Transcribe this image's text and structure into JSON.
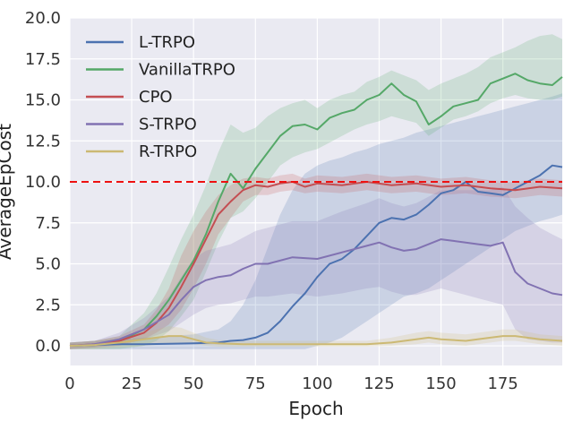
{
  "chart_data": {
    "type": "line",
    "xlabel": "Epoch",
    "ylabel": "AverageEpCost",
    "xlim": [
      0,
      199
    ],
    "ylim": [
      -1.2,
      20.0
    ],
    "xticks": [
      0,
      25,
      50,
      75,
      100,
      125,
      150,
      175
    ],
    "yticks": [
      0.0,
      2.5,
      5.0,
      7.5,
      10.0,
      12.5,
      15.0,
      17.5,
      20.0
    ],
    "xtick_labels": [
      "0",
      "25",
      "50",
      "75",
      "100",
      "125",
      "150",
      "175"
    ],
    "ytick_labels": [
      "0.0",
      "2.5",
      "5.0",
      "7.5",
      "10.0",
      "12.5",
      "15.0",
      "17.5",
      "20.0"
    ],
    "grid": true,
    "legend_position": "top-left",
    "threshold": {
      "value": 10.0,
      "color": "#ee1111",
      "style": "dashed"
    },
    "series": [
      {
        "name": "L-TRPO",
        "color": "#4c72b0",
        "x": [
          0,
          10,
          20,
          30,
          40,
          50,
          60,
          65,
          70,
          75,
          80,
          85,
          90,
          95,
          100,
          105,
          110,
          115,
          120,
          125,
          130,
          135,
          140,
          145,
          150,
          155,
          160,
          165,
          170,
          175,
          180,
          185,
          190,
          195,
          199
        ],
        "mean": [
          0.0,
          0.05,
          0.1,
          0.1,
          0.12,
          0.15,
          0.2,
          0.3,
          0.35,
          0.5,
          0.8,
          1.5,
          2.4,
          3.2,
          4.2,
          5.0,
          5.3,
          5.9,
          6.7,
          7.5,
          7.8,
          7.7,
          8.0,
          8.6,
          9.3,
          9.5,
          10.0,
          9.4,
          9.3,
          9.2,
          9.6,
          10.0,
          10.4,
          11.0,
          10.9
        ],
        "lower": [
          -0.2,
          -0.2,
          -0.2,
          -0.2,
          -0.2,
          -0.2,
          -0.2,
          -0.2,
          -0.2,
          -0.2,
          -0.2,
          -0.2,
          -0.2,
          -0.2,
          0.0,
          0.2,
          0.5,
          1.0,
          1.5,
          2.0,
          2.5,
          3.0,
          3.2,
          3.5,
          4.0,
          4.5,
          5.0,
          5.5,
          6.0,
          6.5,
          7.0,
          7.3,
          7.6,
          7.8,
          8.0
        ],
        "upper": [
          0.2,
          0.3,
          0.4,
          0.5,
          0.6,
          0.7,
          1.0,
          1.5,
          2.5,
          4.0,
          6.0,
          8.0,
          9.5,
          10.5,
          11.0,
          11.3,
          11.5,
          11.8,
          12.0,
          12.3,
          12.5,
          12.7,
          13.0,
          13.2,
          13.4,
          13.6,
          13.8,
          14.0,
          14.2,
          14.4,
          14.6,
          14.8,
          15.0,
          15.2,
          15.4
        ]
      },
      {
        "name": "VanillaTRPO",
        "color": "#55a868",
        "x": [
          0,
          10,
          20,
          30,
          35,
          40,
          45,
          50,
          55,
          60,
          65,
          70,
          75,
          80,
          85,
          90,
          95,
          100,
          105,
          110,
          115,
          120,
          125,
          130,
          135,
          140,
          145,
          150,
          155,
          160,
          165,
          170,
          175,
          180,
          185,
          190,
          195,
          199
        ],
        "mean": [
          0.0,
          0.05,
          0.3,
          1.0,
          1.8,
          2.8,
          4.0,
          5.2,
          6.8,
          8.8,
          10.5,
          9.6,
          10.8,
          11.8,
          12.8,
          13.4,
          13.5,
          13.2,
          13.9,
          14.2,
          14.4,
          15.0,
          15.3,
          16.0,
          15.3,
          14.9,
          13.5,
          14.0,
          14.6,
          14.8,
          15.0,
          16.0,
          16.3,
          16.6,
          16.2,
          16.0,
          15.9,
          16.4
        ],
        "lower": [
          -0.2,
          -0.2,
          -0.2,
          0.0,
          0.3,
          0.9,
          1.8,
          2.8,
          4.5,
          6.3,
          7.8,
          8.2,
          9.0,
          10.0,
          11.0,
          11.5,
          11.8,
          12.0,
          12.4,
          12.8,
          13.2,
          13.5,
          13.7,
          14.0,
          13.8,
          13.6,
          12.8,
          13.3,
          13.8,
          14.0,
          14.3,
          14.8,
          15.1,
          15.3,
          15.1,
          15.0,
          15.0,
          15.2
        ],
        "upper": [
          0.2,
          0.3,
          0.6,
          2.0,
          3.2,
          4.8,
          6.5,
          8.0,
          9.8,
          11.8,
          13.5,
          13.0,
          13.3,
          14.0,
          14.5,
          14.8,
          15.0,
          14.5,
          15.0,
          15.3,
          15.5,
          16.1,
          16.4,
          16.8,
          16.5,
          16.2,
          15.6,
          16.0,
          16.3,
          16.6,
          17.0,
          17.6,
          17.9,
          18.2,
          18.6,
          18.9,
          19.0,
          18.7
        ]
      },
      {
        "name": "CPO",
        "color": "#c44e52",
        "x": [
          0,
          10,
          20,
          30,
          35,
          40,
          45,
          50,
          55,
          60,
          65,
          70,
          75,
          80,
          85,
          90,
          95,
          100,
          110,
          120,
          130,
          140,
          150,
          160,
          170,
          180,
          190,
          199
        ],
        "mean": [
          0.0,
          0.1,
          0.3,
          0.8,
          1.4,
          2.3,
          3.6,
          5.0,
          6.5,
          8.0,
          8.8,
          9.5,
          9.8,
          9.7,
          9.9,
          10.0,
          9.7,
          9.9,
          9.8,
          10.0,
          9.8,
          9.9,
          9.7,
          9.8,
          9.6,
          9.5,
          9.7,
          9.6
        ],
        "lower": [
          -0.2,
          -0.1,
          0.0,
          0.4,
          0.8,
          1.3,
          2.2,
          3.5,
          5.0,
          6.8,
          7.8,
          8.8,
          9.2,
          9.2,
          9.4,
          9.5,
          9.3,
          9.4,
          9.3,
          9.5,
          9.3,
          9.4,
          9.2,
          9.3,
          9.1,
          9.0,
          9.2,
          9.1
        ],
        "upper": [
          0.2,
          0.3,
          0.6,
          1.3,
          2.2,
          3.5,
          5.5,
          7.0,
          8.2,
          9.2,
          9.8,
          10.2,
          10.3,
          10.2,
          10.4,
          10.5,
          10.2,
          10.4,
          10.3,
          10.5,
          10.3,
          10.4,
          10.2,
          10.3,
          10.1,
          10.0,
          10.2,
          10.1
        ]
      },
      {
        "name": "S-TRPO",
        "color": "#8172b2",
        "x": [
          0,
          10,
          20,
          30,
          40,
          45,
          50,
          55,
          60,
          65,
          70,
          75,
          80,
          90,
          100,
          110,
          120,
          125,
          130,
          135,
          140,
          145,
          150,
          155,
          160,
          165,
          170,
          175,
          180,
          185,
          190,
          195,
          199
        ],
        "mean": [
          0.0,
          0.1,
          0.4,
          1.0,
          1.9,
          2.8,
          3.6,
          4.0,
          4.2,
          4.3,
          4.7,
          5.0,
          5.0,
          5.4,
          5.3,
          5.7,
          6.1,
          6.3,
          6.0,
          5.8,
          5.9,
          6.2,
          6.5,
          6.4,
          6.3,
          6.2,
          6.1,
          6.3,
          4.5,
          3.8,
          3.5,
          3.2,
          3.1
        ],
        "lower": [
          -0.2,
          -0.1,
          0.1,
          0.4,
          0.9,
          1.4,
          1.9,
          2.3,
          2.5,
          2.6,
          2.8,
          3.0,
          3.0,
          3.2,
          3.0,
          3.2,
          3.5,
          3.6,
          3.3,
          3.1,
          3.1,
          3.3,
          3.5,
          3.3,
          3.1,
          2.9,
          2.7,
          2.5,
          1.0,
          0.4,
          0.3,
          0.2,
          0.2
        ],
        "upper": [
          0.2,
          0.3,
          0.8,
          1.7,
          3.0,
          4.2,
          5.3,
          5.8,
          6.0,
          6.2,
          6.6,
          7.0,
          7.2,
          7.6,
          7.6,
          8.2,
          8.7,
          9.0,
          8.7,
          8.5,
          8.7,
          9.1,
          9.5,
          9.5,
          9.5,
          9.5,
          9.5,
          9.7,
          8.5,
          7.8,
          7.2,
          6.8,
          6.5
        ]
      },
      {
        "name": "R-TRPO",
        "color": "#ccb974",
        "x": [
          0,
          10,
          20,
          30,
          40,
          45,
          50,
          55,
          60,
          70,
          80,
          90,
          100,
          110,
          120,
          130,
          140,
          145,
          150,
          160,
          170,
          175,
          180,
          190,
          199
        ],
        "mean": [
          0.0,
          0.05,
          0.2,
          0.4,
          0.6,
          0.6,
          0.4,
          0.2,
          0.15,
          0.1,
          0.1,
          0.1,
          0.1,
          0.1,
          0.1,
          0.2,
          0.4,
          0.5,
          0.4,
          0.3,
          0.5,
          0.6,
          0.6,
          0.4,
          0.3
        ],
        "lower": [
          -0.2,
          -0.2,
          -0.1,
          0.0,
          0.1,
          0.2,
          0.1,
          0.0,
          -0.05,
          -0.05,
          -0.05,
          -0.05,
          -0.05,
          -0.05,
          -0.05,
          0.0,
          0.1,
          0.2,
          0.1,
          0.0,
          0.2,
          0.3,
          0.3,
          0.1,
          0.0
        ],
        "upper": [
          0.2,
          0.3,
          0.5,
          0.8,
          1.2,
          1.1,
          0.8,
          0.5,
          0.35,
          0.3,
          0.3,
          0.3,
          0.3,
          0.3,
          0.3,
          0.5,
          0.8,
          0.9,
          0.8,
          0.7,
          0.9,
          1.0,
          1.0,
          0.7,
          0.6
        ]
      }
    ]
  }
}
